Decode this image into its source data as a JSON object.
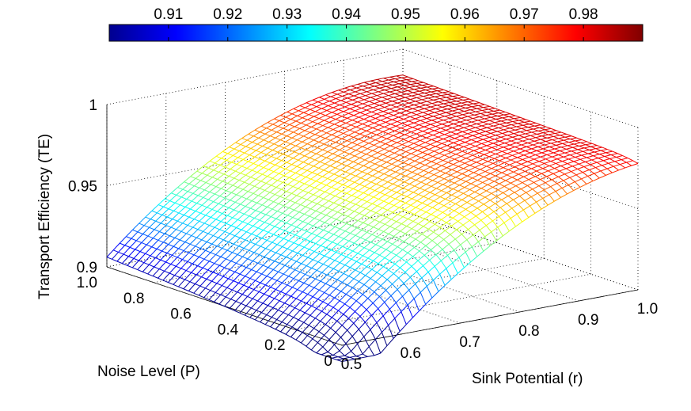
{
  "chart_data": {
    "type": "surface",
    "title": "",
    "xlabel": "Sink Potential (r)",
    "ylabel": "Noise Level (P)",
    "zlabel": "Transport Efficiency (TE)",
    "x_ticks": [
      "0.5",
      "0.6",
      "0.7",
      "0.8",
      "0.9",
      "1.0"
    ],
    "y_ticks": [
      "0",
      "0.2",
      "0.4",
      "0.6",
      "0.8",
      "1.0"
    ],
    "z_ticks": [
      "0.9",
      "0.95",
      "1"
    ],
    "xlim": [
      0.5,
      1.0
    ],
    "ylim": [
      0,
      1.0
    ],
    "zlim": [
      0.9,
      1.0
    ],
    "colorbar": {
      "colormap": "jet",
      "range": [
        0.9,
        0.99
      ],
      "ticks": [
        "0.91",
        "0.92",
        "0.93",
        "0.94",
        "0.95",
        "0.96",
        "0.97",
        "0.98"
      ]
    },
    "corner_values": [
      {
        "r": 0.5,
        "P": 0.0,
        "TE": 0.888
      },
      {
        "r": 0.5,
        "P": 1.0,
        "TE": 0.902
      },
      {
        "r": 1.0,
        "P": 0.0,
        "TE": 0.975
      },
      {
        "r": 1.0,
        "P": 1.0,
        "TE": 0.98
      }
    ],
    "peak": {
      "r": 0.75,
      "P": 1.0,
      "TE": 0.99
    },
    "grid": true
  }
}
